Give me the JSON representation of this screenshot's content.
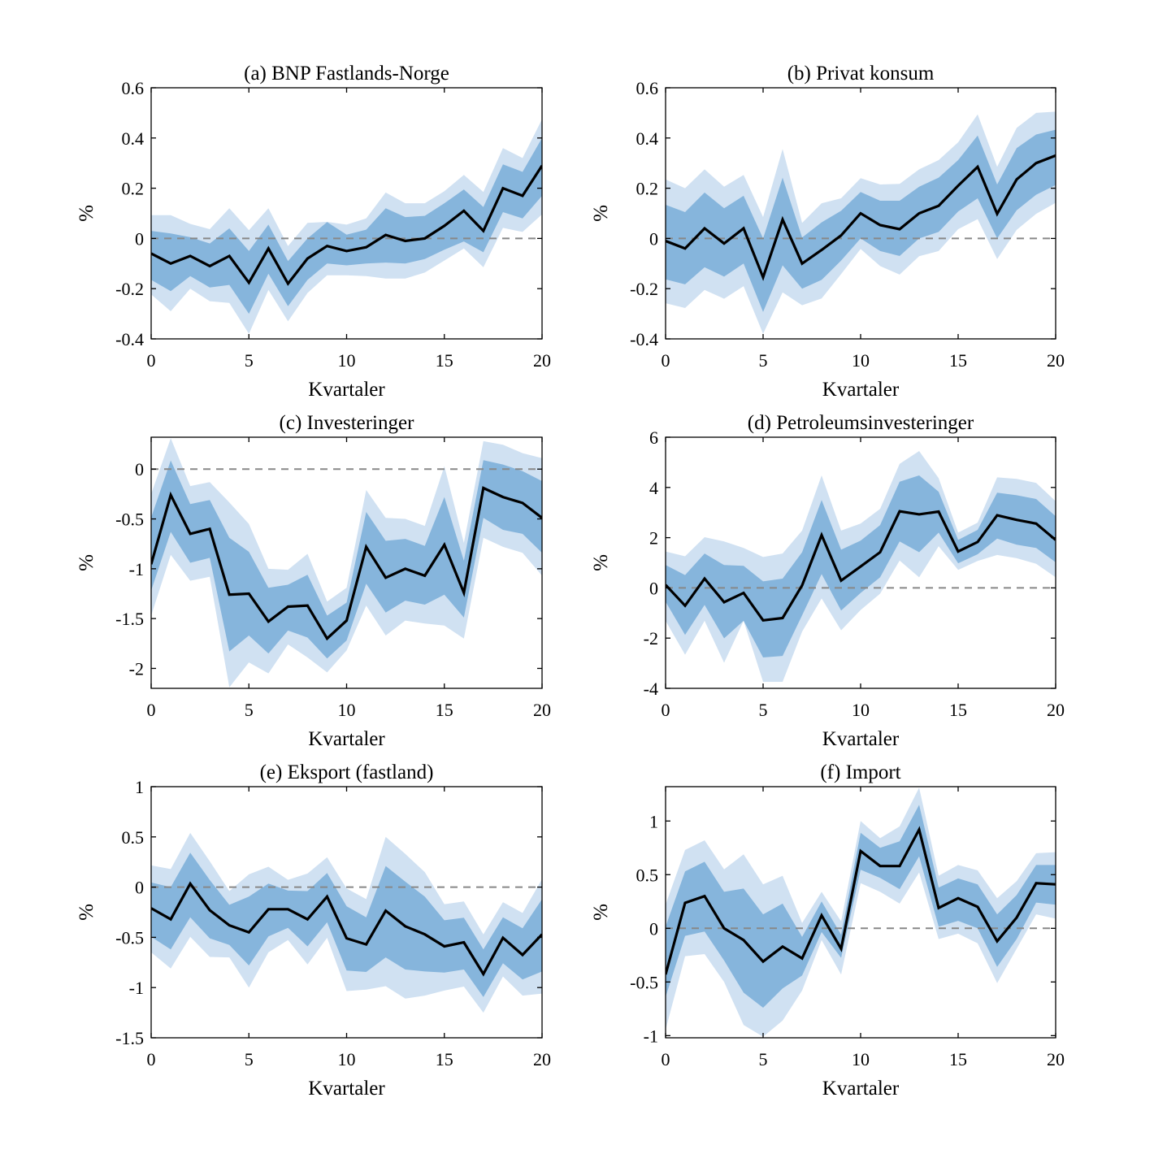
{
  "colors": {
    "outer_band": "#d0e1f2",
    "inner_band": "#86b5dc",
    "median": "#000000",
    "zero_line": "#888888"
  },
  "chart_data": [
    {
      "type": "area",
      "title": "(a) BNP Fastlands-Norge",
      "xlabel": "Kvartaler",
      "ylabel": "%",
      "xlim": [
        0,
        20
      ],
      "ylim": [
        -0.4,
        0.6
      ],
      "xticks": [
        0,
        5,
        10,
        15,
        20
      ],
      "xtick_labels": [
        "0",
        "5",
        "10",
        "15",
        "20"
      ],
      "yticks": [
        -0.4,
        -0.2,
        0,
        0.2,
        0.4,
        0.6
      ],
      "ytick_labels": [
        "-0.4",
        "-0.2",
        "0",
        "0.2",
        "0.4",
        "0.6"
      ],
      "x": [
        0,
        1,
        2,
        3,
        4,
        5,
        6,
        7,
        8,
        9,
        10,
        11,
        12,
        13,
        14,
        15,
        16,
        17,
        18,
        19,
        20
      ],
      "median": [
        -0.06,
        -0.1,
        -0.07,
        -0.11,
        -0.07,
        -0.176,
        -0.04,
        -0.18,
        -0.08,
        -0.03,
        -0.05,
        -0.035,
        0.014,
        -0.01,
        0.0,
        0.05,
        0.11,
        0.03,
        0.2,
        0.17,
        0.29
      ],
      "inner_upper": [
        0.03,
        0.02,
        0.005,
        -0.02,
        0.04,
        -0.05,
        0.055,
        -0.09,
        0.0,
        0.065,
        0.015,
        0.035,
        0.12,
        0.085,
        0.09,
        0.14,
        0.195,
        0.125,
        0.295,
        0.265,
        0.4
      ],
      "inner_lower": [
        -0.165,
        -0.21,
        -0.15,
        -0.195,
        -0.185,
        -0.3,
        -0.14,
        -0.27,
        -0.165,
        -0.1,
        -0.107,
        -0.1,
        -0.096,
        -0.1,
        -0.082,
        -0.045,
        -0.012,
        -0.055,
        0.105,
        0.08,
        0.17
      ],
      "outer_upper": [
        0.093,
        0.093,
        0.058,
        0.037,
        0.12,
        0.033,
        0.12,
        -0.03,
        0.062,
        0.066,
        0.055,
        0.08,
        0.183,
        0.14,
        0.14,
        0.188,
        0.253,
        0.185,
        0.36,
        0.32,
        0.475
      ],
      "outer_lower": [
        -0.223,
        -0.29,
        -0.2,
        -0.25,
        -0.257,
        -0.38,
        -0.205,
        -0.33,
        -0.217,
        -0.147,
        -0.147,
        -0.15,
        -0.16,
        -0.16,
        -0.136,
        -0.088,
        -0.04,
        -0.115,
        0.042,
        0.026,
        0.096
      ]
    },
    {
      "type": "area",
      "title": "(b) Privat konsum",
      "xlabel": "Kvartaler",
      "ylabel": "%",
      "xlim": [
        0,
        20
      ],
      "ylim": [
        -0.4,
        0.6
      ],
      "xticks": [
        0,
        5,
        10,
        15,
        20
      ],
      "xtick_labels": [
        "0",
        "5",
        "10",
        "15",
        "20"
      ],
      "yticks": [
        -0.4,
        -0.2,
        0,
        0.2,
        0.4,
        0.6
      ],
      "ytick_labels": [
        "-0.4",
        "-0.2",
        "0",
        "0.2",
        "0.4",
        "0.6"
      ],
      "x": [
        0,
        1,
        2,
        3,
        4,
        5,
        6,
        7,
        8,
        9,
        10,
        11,
        12,
        13,
        14,
        15,
        16,
        17,
        18,
        19,
        20
      ],
      "median": [
        -0.01,
        -0.04,
        0.04,
        -0.02,
        0.04,
        -0.155,
        0.075,
        -0.1,
        -0.046,
        0.012,
        0.1,
        0.053,
        0.037,
        0.1,
        0.13,
        0.21,
        0.285,
        0.098,
        0.235,
        0.3,
        0.33
      ],
      "inner_upper": [
        0.134,
        0.105,
        0.183,
        0.12,
        0.17,
        0.0,
        0.242,
        0.004,
        0.064,
        0.11,
        0.185,
        0.15,
        0.15,
        0.206,
        0.242,
        0.312,
        0.41,
        0.215,
        0.36,
        0.414,
        0.433
      ],
      "inner_lower": [
        -0.163,
        -0.183,
        -0.115,
        -0.152,
        -0.1,
        -0.293,
        -0.107,
        -0.2,
        -0.165,
        -0.088,
        0.0,
        -0.05,
        -0.07,
        0.0,
        0.026,
        0.107,
        0.16,
        0.0,
        0.112,
        0.174,
        0.213
      ],
      "outer_upper": [
        0.235,
        0.2,
        0.275,
        0.206,
        0.253,
        0.085,
        0.356,
        0.062,
        0.14,
        0.16,
        0.24,
        0.215,
        0.217,
        0.275,
        0.312,
        0.383,
        0.494,
        0.285,
        0.44,
        0.5,
        0.505
      ],
      "outer_lower": [
        -0.258,
        -0.277,
        -0.205,
        -0.24,
        -0.19,
        -0.38,
        -0.215,
        -0.266,
        -0.239,
        -0.142,
        -0.042,
        -0.11,
        -0.144,
        -0.071,
        -0.05,
        0.037,
        0.077,
        -0.082,
        0.034,
        0.098,
        0.142
      ]
    },
    {
      "type": "area",
      "title": "(c) Investeringer",
      "xlabel": "Kvartaler",
      "ylabel": "%",
      "xlim": [
        0,
        20
      ],
      "ylim": [
        -2.2,
        0.32
      ],
      "xticks": [
        0,
        5,
        10,
        15,
        20
      ],
      "xtick_labels": [
        "0",
        "5",
        "10",
        "15",
        "20"
      ],
      "yticks": [
        -2,
        -1.5,
        -1,
        -0.5,
        0
      ],
      "ytick_labels": [
        "-2",
        "-1.5",
        "-1",
        "-0.5",
        "0"
      ],
      "x": [
        0,
        1,
        2,
        3,
        4,
        5,
        6,
        7,
        8,
        9,
        10,
        11,
        12,
        13,
        14,
        15,
        16,
        17,
        18,
        19,
        20
      ],
      "median": [
        -0.955,
        -0.26,
        -0.65,
        -0.6,
        -1.26,
        -1.25,
        -1.53,
        -1.38,
        -1.37,
        -1.7,
        -1.52,
        -0.78,
        -1.09,
        -1.0,
        -1.07,
        -0.76,
        -1.24,
        -0.19,
        -0.28,
        -0.34,
        -0.49
      ],
      "inner_upper": [
        -0.485,
        0.087,
        -0.35,
        -0.31,
        -0.69,
        -0.83,
        -1.19,
        -1.16,
        -1.06,
        -1.47,
        -1.34,
        -0.43,
        -0.72,
        -0.7,
        -0.77,
        -0.28,
        -0.92,
        0.09,
        0.046,
        -0.02,
        -0.12
      ],
      "inner_lower": [
        -1.22,
        -0.63,
        -0.94,
        -0.89,
        -1.83,
        -1.67,
        -1.85,
        -1.62,
        -1.69,
        -1.9,
        -1.72,
        -1.15,
        -1.44,
        -1.32,
        -1.36,
        -1.26,
        -1.49,
        -0.49,
        -0.61,
        -0.65,
        -0.84
      ],
      "outer_upper": [
        -0.25,
        0.31,
        -0.17,
        -0.13,
        -0.335,
        -0.55,
        -1.0,
        -1.01,
        -0.85,
        -1.33,
        -1.19,
        -0.21,
        -0.49,
        -0.5,
        -0.57,
        0.03,
        -0.74,
        0.28,
        0.245,
        0.16,
        0.11
      ],
      "outer_lower": [
        -1.47,
        -0.86,
        -1.12,
        -1.08,
        -2.19,
        -1.94,
        -2.05,
        -1.76,
        -1.89,
        -2.04,
        -1.82,
        -1.37,
        -1.67,
        -1.52,
        -1.55,
        -1.57,
        -1.7,
        -0.69,
        -0.78,
        -0.84,
        -1.07
      ]
    },
    {
      "type": "area",
      "title": "(d) Petroleumsinvesteringer",
      "xlabel": "Kvartaler",
      "ylabel": "%",
      "xlim": [
        0,
        20
      ],
      "ylim": [
        -4,
        6
      ],
      "xticks": [
        0,
        5,
        10,
        15,
        20
      ],
      "xtick_labels": [
        "0",
        "5",
        "10",
        "15",
        "20"
      ],
      "yticks": [
        -4,
        -2,
        0,
        2,
        4,
        6
      ],
      "ytick_labels": [
        "-4",
        "-2",
        "0",
        "2",
        "4",
        "6"
      ],
      "x": [
        0,
        1,
        2,
        3,
        4,
        5,
        6,
        7,
        8,
        9,
        10,
        11,
        12,
        13,
        14,
        15,
        16,
        17,
        18,
        19,
        20
      ],
      "median": [
        0.12,
        -0.71,
        0.37,
        -0.57,
        -0.2,
        -1.29,
        -1.2,
        0.1,
        2.1,
        0.29,
        0.85,
        1.42,
        3.05,
        2.93,
        3.04,
        1.45,
        1.83,
        2.89,
        2.71,
        2.56,
        1.91
      ],
      "inner_upper": [
        0.91,
        0.51,
        1.37,
        0.91,
        0.88,
        0.26,
        0.37,
        1.42,
        3.5,
        1.52,
        1.88,
        2.5,
        4.23,
        4.48,
        3.83,
        1.91,
        2.31,
        3.79,
        3.69,
        3.54,
        2.85
      ],
      "inner_lower": [
        -0.55,
        -1.87,
        -0.68,
        -2.01,
        -1.31,
        -2.77,
        -2.71,
        -1.09,
        0.55,
        -0.9,
        -0.2,
        0.42,
        1.85,
        1.42,
        2.2,
        0.98,
        1.34,
        1.96,
        1.72,
        1.59,
        1.02
      ],
      "outer_upper": [
        1.45,
        1.26,
        2.02,
        1.85,
        1.59,
        1.23,
        1.37,
        2.28,
        4.48,
        2.28,
        2.56,
        3.15,
        4.94,
        5.45,
        4.37,
        2.2,
        2.6,
        4.4,
        4.34,
        4.18,
        3.45
      ],
      "outer_lower": [
        -1.31,
        -2.66,
        -1.31,
        -2.98,
        -1.31,
        -3.74,
        -3.74,
        -1.74,
        -0.42,
        -1.69,
        -0.88,
        -0.23,
        1.09,
        0.42,
        1.66,
        0.72,
        1.07,
        1.31,
        1.18,
        0.96,
        0.42
      ]
    },
    {
      "type": "area",
      "title": "(e) Eksport (fastland)",
      "xlabel": "Kvartaler",
      "ylabel": "%",
      "xlim": [
        0,
        20
      ],
      "ylim": [
        -1.5,
        1
      ],
      "xticks": [
        0,
        5,
        10,
        15,
        20
      ],
      "xtick_labels": [
        "0",
        "5",
        "10",
        "15",
        "20"
      ],
      "yticks": [
        -1.5,
        -1,
        -0.5,
        0,
        0.5,
        1
      ],
      "ytick_labels": [
        "-1.5",
        "-1",
        "-0.5",
        "0",
        "0.5",
        "1"
      ],
      "x": [
        0,
        1,
        2,
        3,
        4,
        5,
        6,
        7,
        8,
        9,
        10,
        11,
        12,
        13,
        14,
        15,
        16,
        17,
        18,
        19,
        20
      ],
      "median": [
        -0.21,
        -0.32,
        0.035,
        -0.23,
        -0.38,
        -0.45,
        -0.22,
        -0.22,
        -0.32,
        -0.095,
        -0.51,
        -0.57,
        -0.235,
        -0.39,
        -0.47,
        -0.59,
        -0.55,
        -0.865,
        -0.505,
        -0.675,
        -0.47
      ],
      "inner_upper": [
        0.046,
        0.0,
        0.343,
        0.07,
        -0.176,
        -0.095,
        0.035,
        -0.035,
        -0.04,
        0.14,
        -0.19,
        -0.3,
        0.21,
        0.054,
        -0.095,
        -0.33,
        -0.305,
        -0.62,
        -0.3,
        -0.41,
        -0.12
      ],
      "inner_lower": [
        -0.495,
        -0.62,
        -0.3,
        -0.51,
        -0.575,
        -0.78,
        -0.49,
        -0.405,
        -0.59,
        -0.35,
        -0.83,
        -0.845,
        -0.7,
        -0.82,
        -0.84,
        -0.85,
        -0.82,
        -1.095,
        -0.757,
        -0.92,
        -0.84
      ],
      "outer_upper": [
        0.216,
        0.18,
        0.54,
        0.257,
        -0.04,
        0.127,
        0.203,
        0.073,
        0.135,
        0.297,
        -0.013,
        -0.12,
        0.5,
        0.33,
        0.15,
        -0.17,
        -0.143,
        -0.47,
        -0.15,
        -0.257,
        0.08
      ],
      "outer_lower": [
        -0.65,
        -0.81,
        -0.495,
        -0.695,
        -0.7,
        -1.0,
        -0.65,
        -0.527,
        -0.77,
        -0.505,
        -1.035,
        -1.02,
        -0.986,
        -1.11,
        -1.08,
        -1.03,
        -0.99,
        -1.25,
        -0.89,
        -1.08,
        -1.06
      ]
    },
    {
      "type": "area",
      "title": "(f) Import",
      "xlabel": "Kvartaler",
      "ylabel": "%",
      "xlim": [
        0,
        20
      ],
      "ylim": [
        -1.02,
        1.32
      ],
      "xticks": [
        0,
        5,
        10,
        15,
        20
      ],
      "xtick_labels": [
        "0",
        "5",
        "10",
        "15",
        "20"
      ],
      "yticks": [
        -1,
        -0.5,
        0,
        0.5,
        1
      ],
      "ytick_labels": [
        "-1",
        "-0.5",
        "0",
        "0.5",
        "1"
      ],
      "x": [
        0,
        1,
        2,
        3,
        4,
        5,
        6,
        7,
        8,
        9,
        10,
        11,
        12,
        13,
        14,
        15,
        16,
        17,
        18,
        19,
        20
      ],
      "median": [
        -0.43,
        0.237,
        0.3,
        0.0,
        -0.11,
        -0.31,
        -0.17,
        -0.28,
        0.12,
        -0.19,
        0.72,
        0.58,
        0.58,
        0.92,
        0.19,
        0.28,
        0.2,
        -0.12,
        0.1,
        0.42,
        0.41
      ],
      "inner_upper": [
        0.015,
        0.53,
        0.62,
        0.34,
        0.37,
        0.13,
        0.23,
        -0.08,
        0.25,
        -0.06,
        0.89,
        0.75,
        0.81,
        1.15,
        0.38,
        0.465,
        0.41,
        0.13,
        0.31,
        0.59,
        0.59
      ],
      "inner_lower": [
        -0.64,
        -0.07,
        -0.03,
        -0.3,
        -0.6,
        -0.74,
        -0.56,
        -0.44,
        -0.035,
        -0.275,
        0.545,
        0.47,
        0.365,
        0.67,
        0.015,
        0.07,
        0.0,
        -0.36,
        -0.1,
        0.24,
        0.22
      ],
      "outer_upper": [
        0.22,
        0.73,
        0.82,
        0.55,
        0.69,
        0.41,
        0.49,
        0.05,
        0.34,
        0.065,
        1.0,
        0.84,
        0.95,
        1.31,
        0.49,
        0.59,
        0.54,
        0.28,
        0.44,
        0.7,
        0.71
      ],
      "outer_lower": [
        -0.945,
        -0.26,
        -0.24,
        -0.5,
        -0.9,
        -1.01,
        -0.86,
        -0.58,
        -0.11,
        -0.43,
        0.42,
        0.34,
        0.23,
        0.52,
        -0.1,
        -0.05,
        -0.14,
        -0.51,
        -0.19,
        0.13,
        0.09
      ]
    }
  ]
}
